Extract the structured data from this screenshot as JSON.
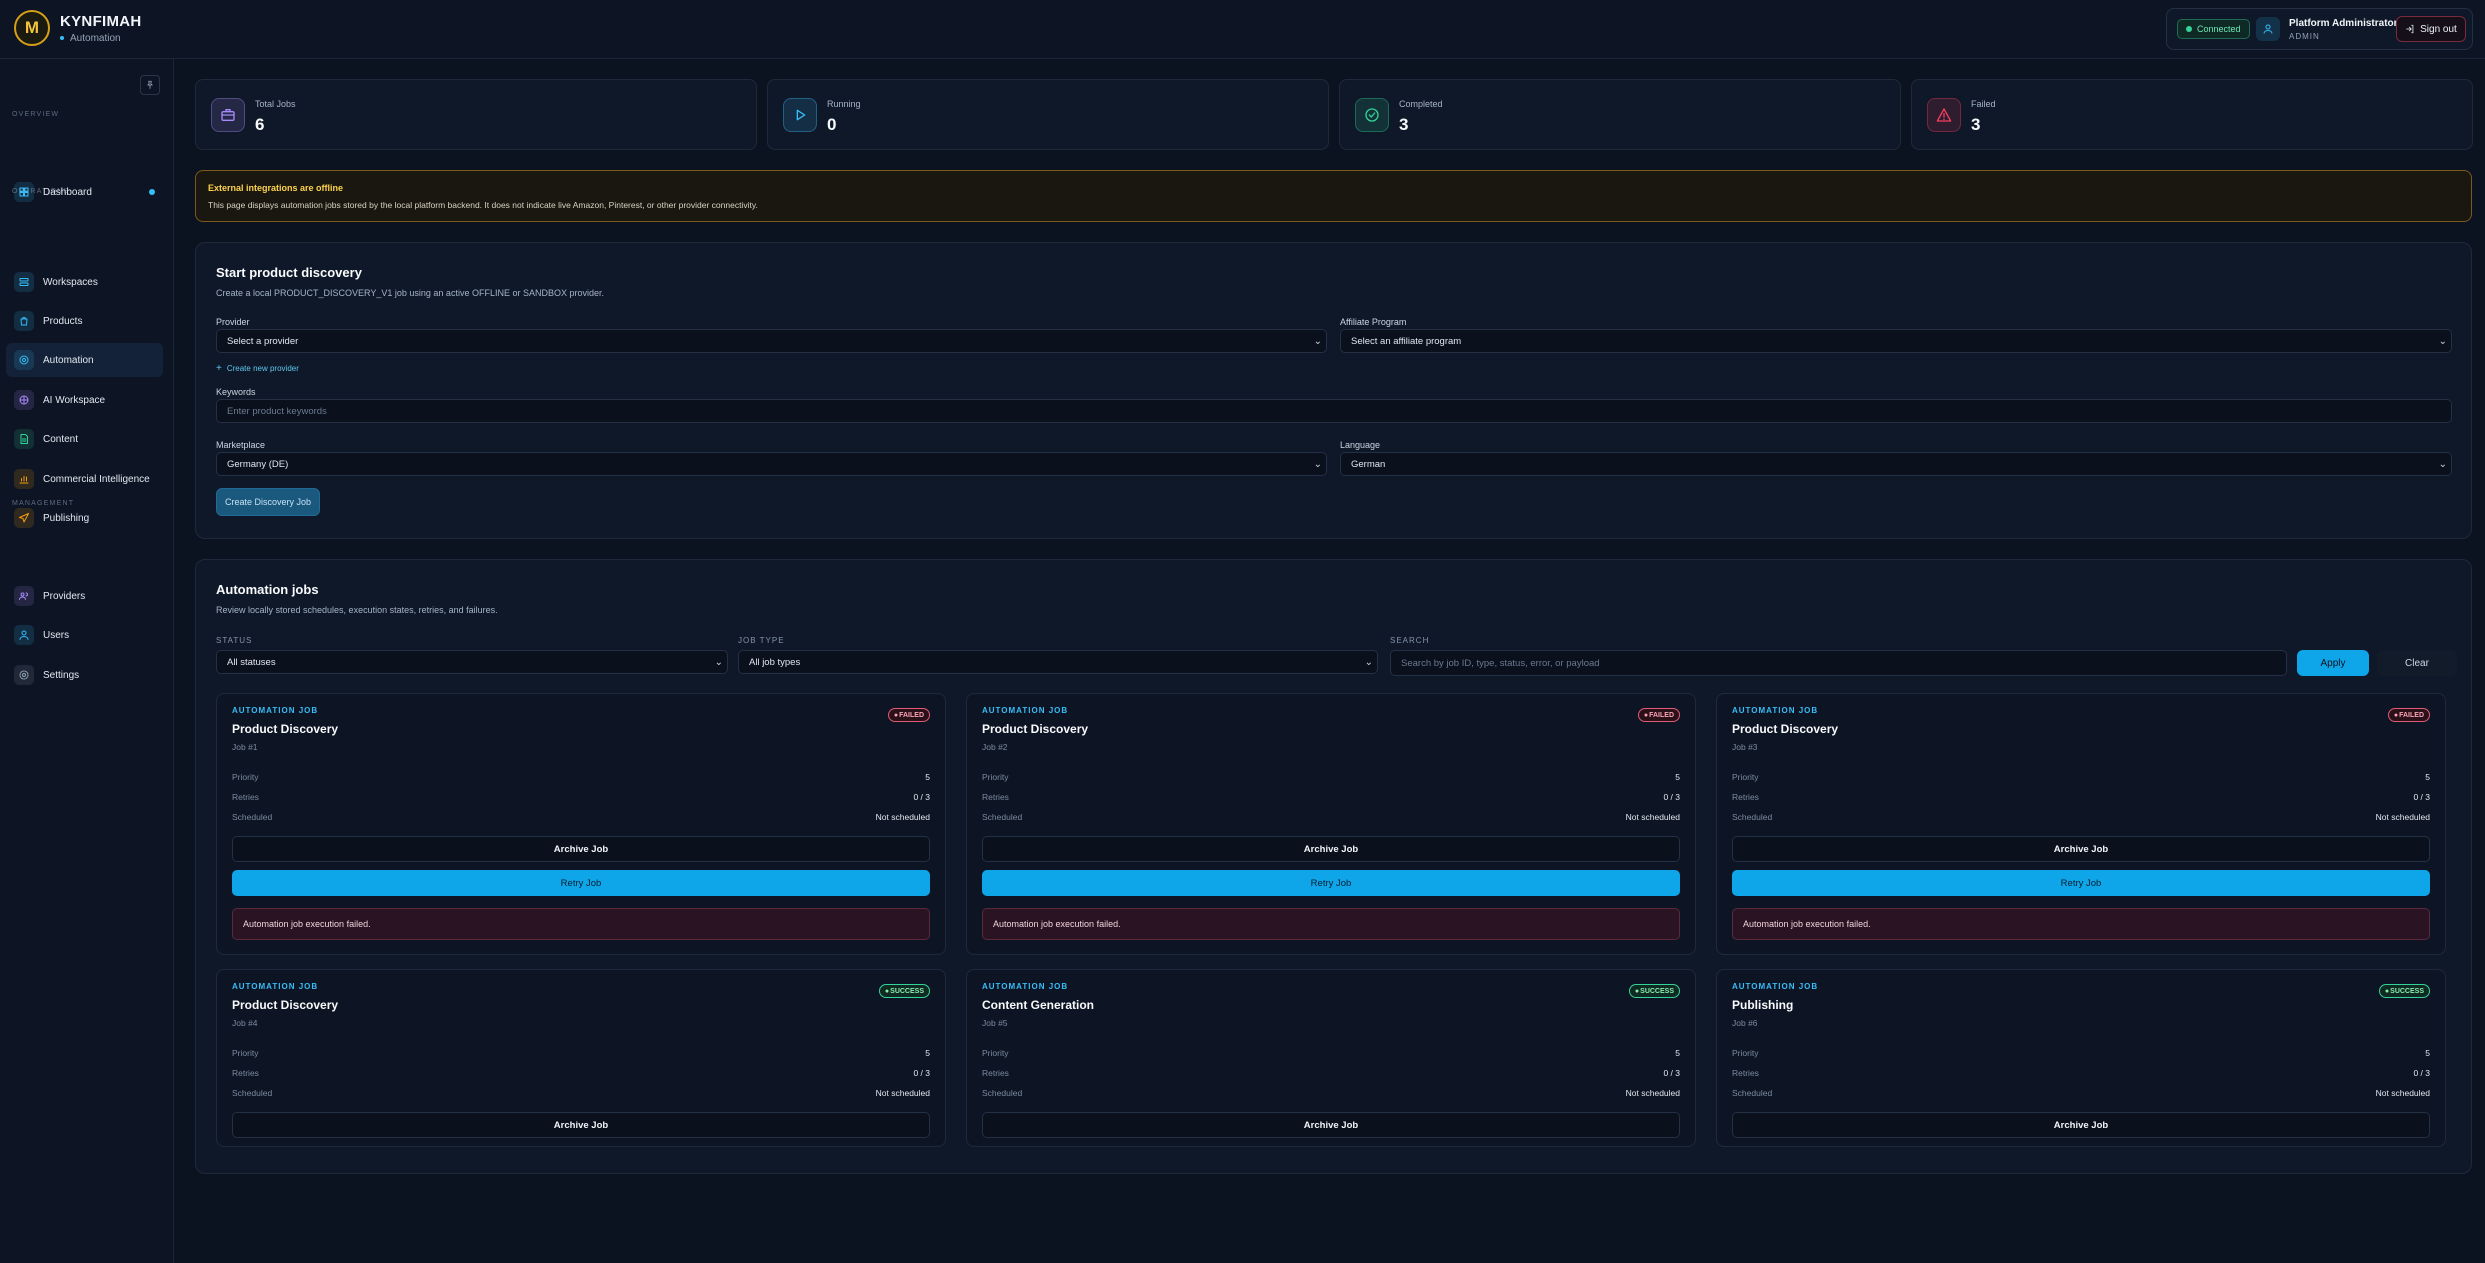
{
  "brand": {
    "initial": "M",
    "name": "KYNFIMAH",
    "section": "Automation"
  },
  "header": {
    "connection": "Connected",
    "user_name": "Platform Administrator",
    "user_role": "ADMIN",
    "signout_label": "Sign out"
  },
  "sidebar": {
    "sections": [
      "OVERVIEW",
      "OPERATIONS",
      "MANAGEMENT"
    ],
    "items": [
      {
        "label": "Dashboard",
        "icon": "dashboard-icon",
        "color": "#38bdf8"
      },
      {
        "label": "Workspaces",
        "icon": "workspaces-icon",
        "color": "#38bdf8"
      },
      {
        "label": "Products",
        "icon": "products-icon",
        "color": "#38bdf8"
      },
      {
        "label": "Automation",
        "icon": "automation-icon",
        "color": "#38bdf8"
      },
      {
        "label": "AI Workspace",
        "icon": "ai-workspace-icon",
        "color": "#a78bfa"
      },
      {
        "label": "Content",
        "icon": "content-icon",
        "color": "#34d399"
      },
      {
        "label": "Commercial Intelligence",
        "icon": "commercial-intelligence-icon",
        "color": "#f59e0b"
      },
      {
        "label": "Publishing",
        "icon": "publishing-icon",
        "color": "#f59e0b"
      },
      {
        "label": "Providers",
        "icon": "providers-icon",
        "color": "#a78bfa"
      },
      {
        "label": "Users",
        "icon": "users-icon",
        "color": "#38bdf8"
      },
      {
        "label": "Settings",
        "icon": "settings-icon",
        "color": "#94a3b8"
      }
    ]
  },
  "stats": [
    {
      "label": "Total Jobs",
      "value": "6",
      "icon": "briefcase-icon",
      "color": "#a78bfa"
    },
    {
      "label": "Running",
      "value": "0",
      "icon": "play-icon",
      "color": "#38bdf8"
    },
    {
      "label": "Completed",
      "value": "3",
      "icon": "check-circle-icon",
      "color": "#34d399"
    },
    {
      "label": "Failed",
      "value": "3",
      "icon": "warning-icon",
      "color": "#f43f5e"
    }
  ],
  "alert": {
    "title": "External integrations are offline",
    "description": "This page displays automation jobs stored by the local platform backend. It does not indicate live Amazon, Pinterest, or other provider connectivity."
  },
  "discovery": {
    "title": "Start product discovery",
    "description": "Create a local PRODUCT_DISCOVERY_V1 job using an active OFFLINE or SANDBOX provider.",
    "provider_label": "Provider",
    "provider_value": "Select a provider",
    "affiliate_label": "Affiliate Program",
    "affiliate_value": "Select an affiliate program",
    "create_provider_label": "Create new provider",
    "keywords_label": "Keywords",
    "keywords_placeholder": "Enter product keywords",
    "marketplace_label": "Marketplace",
    "marketplace_value": "Germany (DE)",
    "language_label": "Language",
    "language_value": "German",
    "submit_label": "Create Discovery Job"
  },
  "jobs_panel": {
    "title": "Automation jobs",
    "description": "Review locally stored schedules, execution states, retries, and failures.",
    "status_label": "STATUS",
    "status_value": "All statuses",
    "type_label": "JOB TYPE",
    "type_value": "All job types",
    "search_label": "SEARCH",
    "search_placeholder": "Search by job ID, type, status, error, or payload",
    "apply_label": "Apply",
    "clear_label": "Clear"
  },
  "job_card_labels": {
    "tag": "AUTOMATION JOB",
    "priority": "Priority",
    "retries": "Retries",
    "scheduled": "Scheduled",
    "archive": "Archive Job",
    "retry": "Retry Job"
  },
  "jobs": [
    {
      "title": "Product Discovery",
      "job_id": "Job #1",
      "status": "FAILED",
      "priority": "5",
      "retries": "0 / 3",
      "scheduled": "Not scheduled",
      "error": "Automation job execution failed."
    },
    {
      "title": "Product Discovery",
      "job_id": "Job #2",
      "status": "FAILED",
      "priority": "5",
      "retries": "0 / 3",
      "scheduled": "Not scheduled",
      "error": "Automation job execution failed."
    },
    {
      "title": "Product Discovery",
      "job_id": "Job #3",
      "status": "FAILED",
      "priority": "5",
      "retries": "0 / 3",
      "scheduled": "Not scheduled",
      "error": "Automation job execution failed."
    },
    {
      "title": "Product Discovery",
      "job_id": "Job #4",
      "status": "SUCCESS",
      "priority": "5",
      "retries": "0 / 3",
      "scheduled": "Not scheduled"
    },
    {
      "title": "Content Generation",
      "job_id": "Job #5",
      "status": "SUCCESS",
      "priority": "5",
      "retries": "0 / 3",
      "scheduled": "Not scheduled"
    },
    {
      "title": "Publishing",
      "job_id": "Job #6",
      "status": "SUCCESS",
      "priority": "5",
      "retries": "0 / 3",
      "scheduled": "Not scheduled"
    }
  ]
}
